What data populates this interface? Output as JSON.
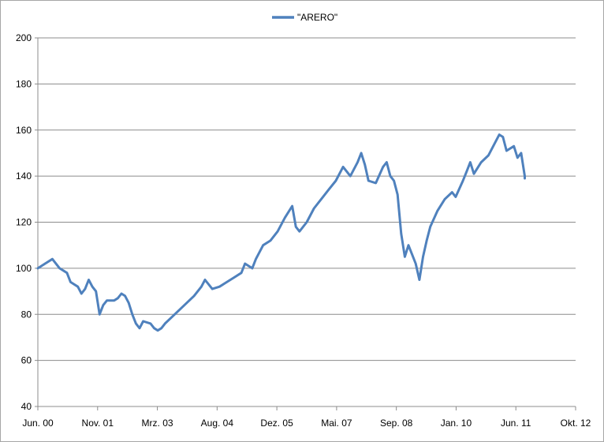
{
  "chart_data": {
    "type": "line",
    "title": "",
    "xlabel": "",
    "ylabel": "",
    "legend": {
      "position": "top-center"
    },
    "grid": {
      "horizontal": true,
      "vertical": false
    },
    "ylim": [
      40,
      200
    ],
    "y_ticks": [
      40,
      60,
      80,
      100,
      120,
      140,
      160,
      180,
      200
    ],
    "x_ticks": [
      "Jun. 00",
      "Nov. 01",
      "Mrz. 03",
      "Aug. 04",
      "Dez. 05",
      "Mai. 07",
      "Sep. 08",
      "Jan. 10",
      "Jun. 11",
      "Okt. 12"
    ],
    "series": [
      {
        "name": "\"ARERO\"",
        "color": "#4f81bd",
        "points": [
          [
            "2000-06",
            100
          ],
          [
            "2000-08",
            102
          ],
          [
            "2000-10",
            104
          ],
          [
            "2000-12",
            100
          ],
          [
            "2001-02",
            98
          ],
          [
            "2001-03",
            94
          ],
          [
            "2001-05",
            92
          ],
          [
            "2001-06",
            89
          ],
          [
            "2001-07",
            91
          ],
          [
            "2001-08",
            95
          ],
          [
            "2001-09",
            92
          ],
          [
            "2001-10",
            90
          ],
          [
            "2001-11",
            80
          ],
          [
            "2001-12",
            84
          ],
          [
            "2002-01",
            86
          ],
          [
            "2002-03",
            86
          ],
          [
            "2002-04",
            87
          ],
          [
            "2002-05",
            89
          ],
          [
            "2002-06",
            88
          ],
          [
            "2002-07",
            85
          ],
          [
            "2002-08",
            80
          ],
          [
            "2002-09",
            76
          ],
          [
            "2002-10",
            74
          ],
          [
            "2002-11",
            77
          ],
          [
            "2003-01",
            76
          ],
          [
            "2003-02",
            74
          ],
          [
            "2003-03",
            73
          ],
          [
            "2003-04",
            74
          ],
          [
            "2003-05",
            76
          ],
          [
            "2003-07",
            79
          ],
          [
            "2003-09",
            82
          ],
          [
            "2003-11",
            85
          ],
          [
            "2004-01",
            88
          ],
          [
            "2004-03",
            92
          ],
          [
            "2004-04",
            95
          ],
          [
            "2004-06",
            91
          ],
          [
            "2004-08",
            92
          ],
          [
            "2004-10",
            94
          ],
          [
            "2004-12",
            96
          ],
          [
            "2005-02",
            98
          ],
          [
            "2005-03",
            102
          ],
          [
            "2005-05",
            100
          ],
          [
            "2005-06",
            104
          ],
          [
            "2005-08",
            110
          ],
          [
            "2005-10",
            112
          ],
          [
            "2005-12",
            116
          ],
          [
            "2006-02",
            122
          ],
          [
            "2006-04",
            127
          ],
          [
            "2006-05",
            118
          ],
          [
            "2006-06",
            116
          ],
          [
            "2006-08",
            120
          ],
          [
            "2006-10",
            126
          ],
          [
            "2006-12",
            130
          ],
          [
            "2007-02",
            134
          ],
          [
            "2007-04",
            138
          ],
          [
            "2007-06",
            144
          ],
          [
            "2007-08",
            140
          ],
          [
            "2007-10",
            146
          ],
          [
            "2007-11",
            150
          ],
          [
            "2007-12",
            145
          ],
          [
            "2008-01",
            138
          ],
          [
            "2008-03",
            137
          ],
          [
            "2008-05",
            144
          ],
          [
            "2008-06",
            146
          ],
          [
            "2008-07",
            140
          ],
          [
            "2008-08",
            138
          ],
          [
            "2008-09",
            132
          ],
          [
            "2008-10",
            115
          ],
          [
            "2008-11",
            105
          ],
          [
            "2008-12",
            110
          ],
          [
            "2009-02",
            102
          ],
          [
            "2009-03",
            95
          ],
          [
            "2009-04",
            105
          ],
          [
            "2009-05",
            112
          ],
          [
            "2009-06",
            118
          ],
          [
            "2009-08",
            125
          ],
          [
            "2009-10",
            130
          ],
          [
            "2009-12",
            133
          ],
          [
            "2010-01",
            131
          ],
          [
            "2010-03",
            138
          ],
          [
            "2010-04",
            142
          ],
          [
            "2010-05",
            146
          ],
          [
            "2010-06",
            141
          ],
          [
            "2010-08",
            146
          ],
          [
            "2010-10",
            149
          ],
          [
            "2010-12",
            155
          ],
          [
            "2011-01",
            158
          ],
          [
            "2011-02",
            157
          ],
          [
            "2011-03",
            151
          ],
          [
            "2011-05",
            153
          ],
          [
            "2011-06",
            148
          ],
          [
            "2011-07",
            150
          ],
          [
            "2011-08",
            140
          ],
          [
            "2011-08",
            139
          ]
        ]
      }
    ]
  }
}
